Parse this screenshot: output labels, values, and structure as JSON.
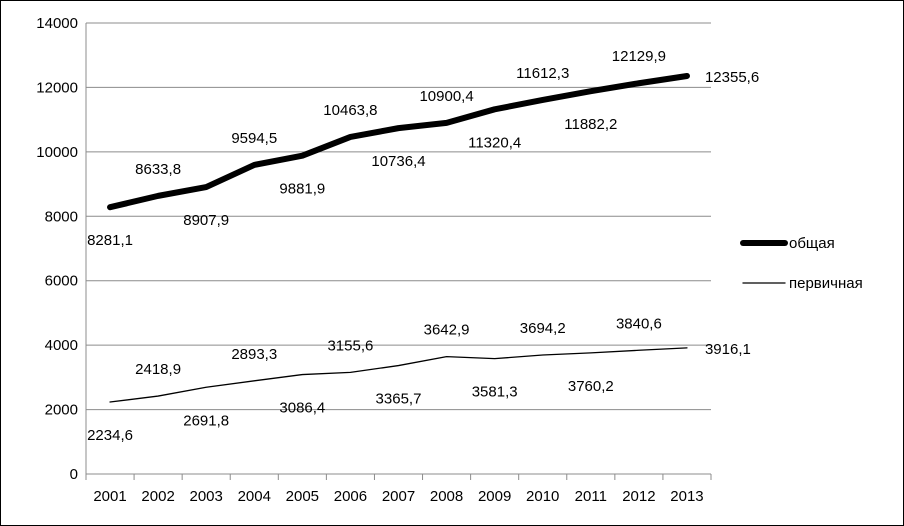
{
  "chart_data": {
    "type": "line",
    "title": "",
    "xlabel": "",
    "ylabel": "",
    "x": [
      "2001",
      "2002",
      "2003",
      "2004",
      "2005",
      "2006",
      "2007",
      "2008",
      "2009",
      "2010",
      "2011",
      "2012",
      "2013"
    ],
    "ylim": [
      0,
      14000
    ],
    "yticks": [
      "0",
      "2000",
      "4000",
      "6000",
      "8000",
      "10000",
      "12000",
      "14000"
    ],
    "grid": "horizontal",
    "legend_position": "right",
    "series": [
      {
        "name": "общая",
        "values": [
          8281.1,
          8633.8,
          8907.9,
          9594.5,
          9881.9,
          10463.8,
          10736.4,
          10900.4,
          11320.4,
          11612.3,
          11882.2,
          12129.9,
          12355.6
        ],
        "labels": [
          "8281,1",
          "8633,8",
          "8907,9",
          "9594,5",
          "9881,9",
          "10463,8",
          "10736,4",
          "10900,4",
          "11320,4",
          "11612,3",
          "11882,2",
          "12129,9",
          "12355,6"
        ],
        "color": "#000000",
        "weight": "thick"
      },
      {
        "name": "первичная",
        "values": [
          2234.6,
          2418.9,
          2691.8,
          2893.3,
          3086.4,
          3155.6,
          3365.7,
          3642.9,
          3581.3,
          3694.2,
          3760.2,
          3840.6,
          3916.1
        ],
        "labels": [
          "2234,6",
          "2418,9",
          "2691,8",
          "2893,3",
          "3086,4",
          "3155,6",
          "3365,7",
          "3642,9",
          "3581,3",
          "3694,2",
          "3760,2",
          "3840,6",
          "3916,1"
        ],
        "color": "#000000",
        "weight": "thin"
      }
    ]
  }
}
